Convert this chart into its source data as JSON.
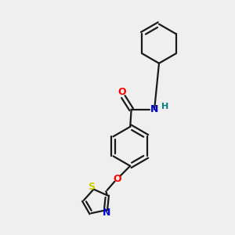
{
  "bg_color": "#efefef",
  "bond_color": "#1a1a1a",
  "O_color": "#ff0000",
  "N_color": "#0000cc",
  "S_color": "#cccc00",
  "H_color": "#008080",
  "font_size": 9,
  "bond_width": 1.6,
  "xlim": [
    0,
    10
  ],
  "ylim": [
    0,
    10
  ]
}
